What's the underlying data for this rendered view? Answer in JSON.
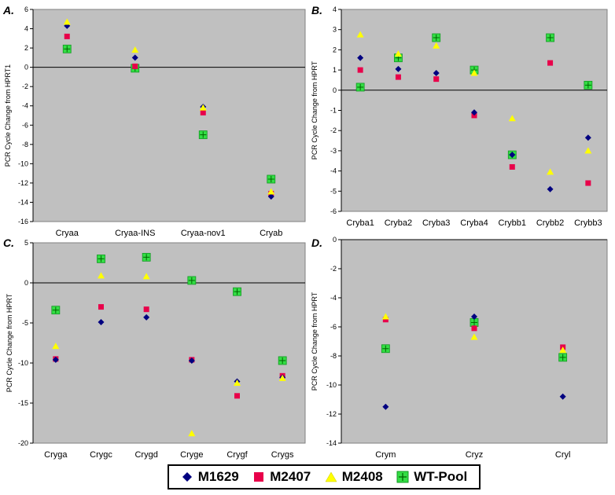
{
  "chart_data": [
    {
      "type": "scatter",
      "panel_label": "A.",
      "ylabel": "PCR Cycle Change from HPRT1",
      "ylim": [
        -16,
        6
      ],
      "ytick_step": 2,
      "categories": [
        "Cryaa",
        "Cryaa-INS",
        "Cryaa-nov1",
        "Cryab"
      ],
      "series": [
        {
          "name": "M1629",
          "values": [
            4.3,
            1.0,
            -4.1,
            -13.4
          ]
        },
        {
          "name": "M2407",
          "values": [
            3.2,
            0.1,
            -4.7,
            -13.1
          ]
        },
        {
          "name": "M2408",
          "values": [
            4.7,
            1.8,
            -4.2,
            -12.9
          ]
        },
        {
          "name": "WT-Pool",
          "values": [
            1.9,
            -0.1,
            -7.0,
            -11.6
          ]
        }
      ]
    },
    {
      "type": "scatter",
      "panel_label": "B.",
      "ylabel": "PCR Cycle Change from HPRT",
      "ylim": [
        -6,
        4
      ],
      "ytick_step": 1,
      "categories": [
        "Cryba1",
        "Cryba2",
        "Cryba3",
        "Cryba4",
        "Crybb1",
        "Crybb2",
        "Crybb3"
      ],
      "series": [
        {
          "name": "M1629",
          "values": [
            1.6,
            1.05,
            0.85,
            -1.1,
            -3.2,
            -4.9,
            -2.35
          ]
        },
        {
          "name": "M2407",
          "values": [
            1.0,
            0.65,
            0.55,
            -1.25,
            -3.8,
            1.35,
            -4.6
          ]
        },
        {
          "name": "M2408",
          "values": [
            2.75,
            1.8,
            2.2,
            0.85,
            -1.4,
            -4.05,
            -3.0
          ]
        },
        {
          "name": "WT-Pool",
          "values": [
            0.15,
            1.6,
            2.6,
            1.0,
            -3.2,
            2.6,
            0.25
          ]
        }
      ]
    },
    {
      "type": "scatter",
      "panel_label": "C.",
      "ylabel": "PCR Cycle Change from HPRT",
      "ylim": [
        -20,
        5
      ],
      "ytick_step": 5,
      "categories": [
        "Cryga",
        "Crygc",
        "Crygd",
        "Cryge",
        "Crygf",
        "Crygs"
      ],
      "series": [
        {
          "name": "M1629",
          "values": [
            -9.6,
            -4.9,
            -4.3,
            -9.7,
            -12.3,
            -11.8
          ]
        },
        {
          "name": "M2407",
          "values": [
            -9.5,
            -3.0,
            -3.3,
            -9.6,
            -14.1,
            -11.6
          ]
        },
        {
          "name": "M2408",
          "values": [
            -7.9,
            0.9,
            0.8,
            -18.8,
            -12.5,
            -11.9
          ]
        },
        {
          "name": "WT-Pool",
          "values": [
            -3.4,
            3.0,
            3.2,
            0.3,
            -1.1,
            -9.7
          ]
        }
      ]
    },
    {
      "type": "scatter",
      "panel_label": "D.",
      "ylabel": "PCR Cycle Change from HPRT",
      "ylim": [
        -14,
        0
      ],
      "ytick_step": 2,
      "categories": [
        "Crym",
        "Cryz",
        "Cryl"
      ],
      "series": [
        {
          "name": "M1629",
          "values": [
            -11.5,
            -5.3,
            -10.8
          ]
        },
        {
          "name": "M2407",
          "values": [
            -5.5,
            -6.1,
            -7.4
          ]
        },
        {
          "name": "M2408",
          "values": [
            -5.3,
            -6.7,
            -7.6
          ]
        },
        {
          "name": "WT-Pool",
          "values": [
            -7.5,
            -5.7,
            -8.1
          ]
        }
      ]
    }
  ],
  "legend": {
    "items": [
      {
        "name": "M1629",
        "color": "#000080",
        "marker": "diamond"
      },
      {
        "name": "M2407",
        "color": "#e8004a",
        "marker": "square"
      },
      {
        "name": "M2408",
        "color": "#ffff00",
        "marker": "triangle"
      },
      {
        "name": "WT-Pool",
        "color": "#00e040",
        "marker": "square-plus"
      }
    ]
  },
  "colors": {
    "plot_background": "#c0c0c0",
    "M1629": "#000080",
    "M2407": "#e8004a",
    "M2408": "#ffff00",
    "WT-Pool": "#33dd44"
  }
}
